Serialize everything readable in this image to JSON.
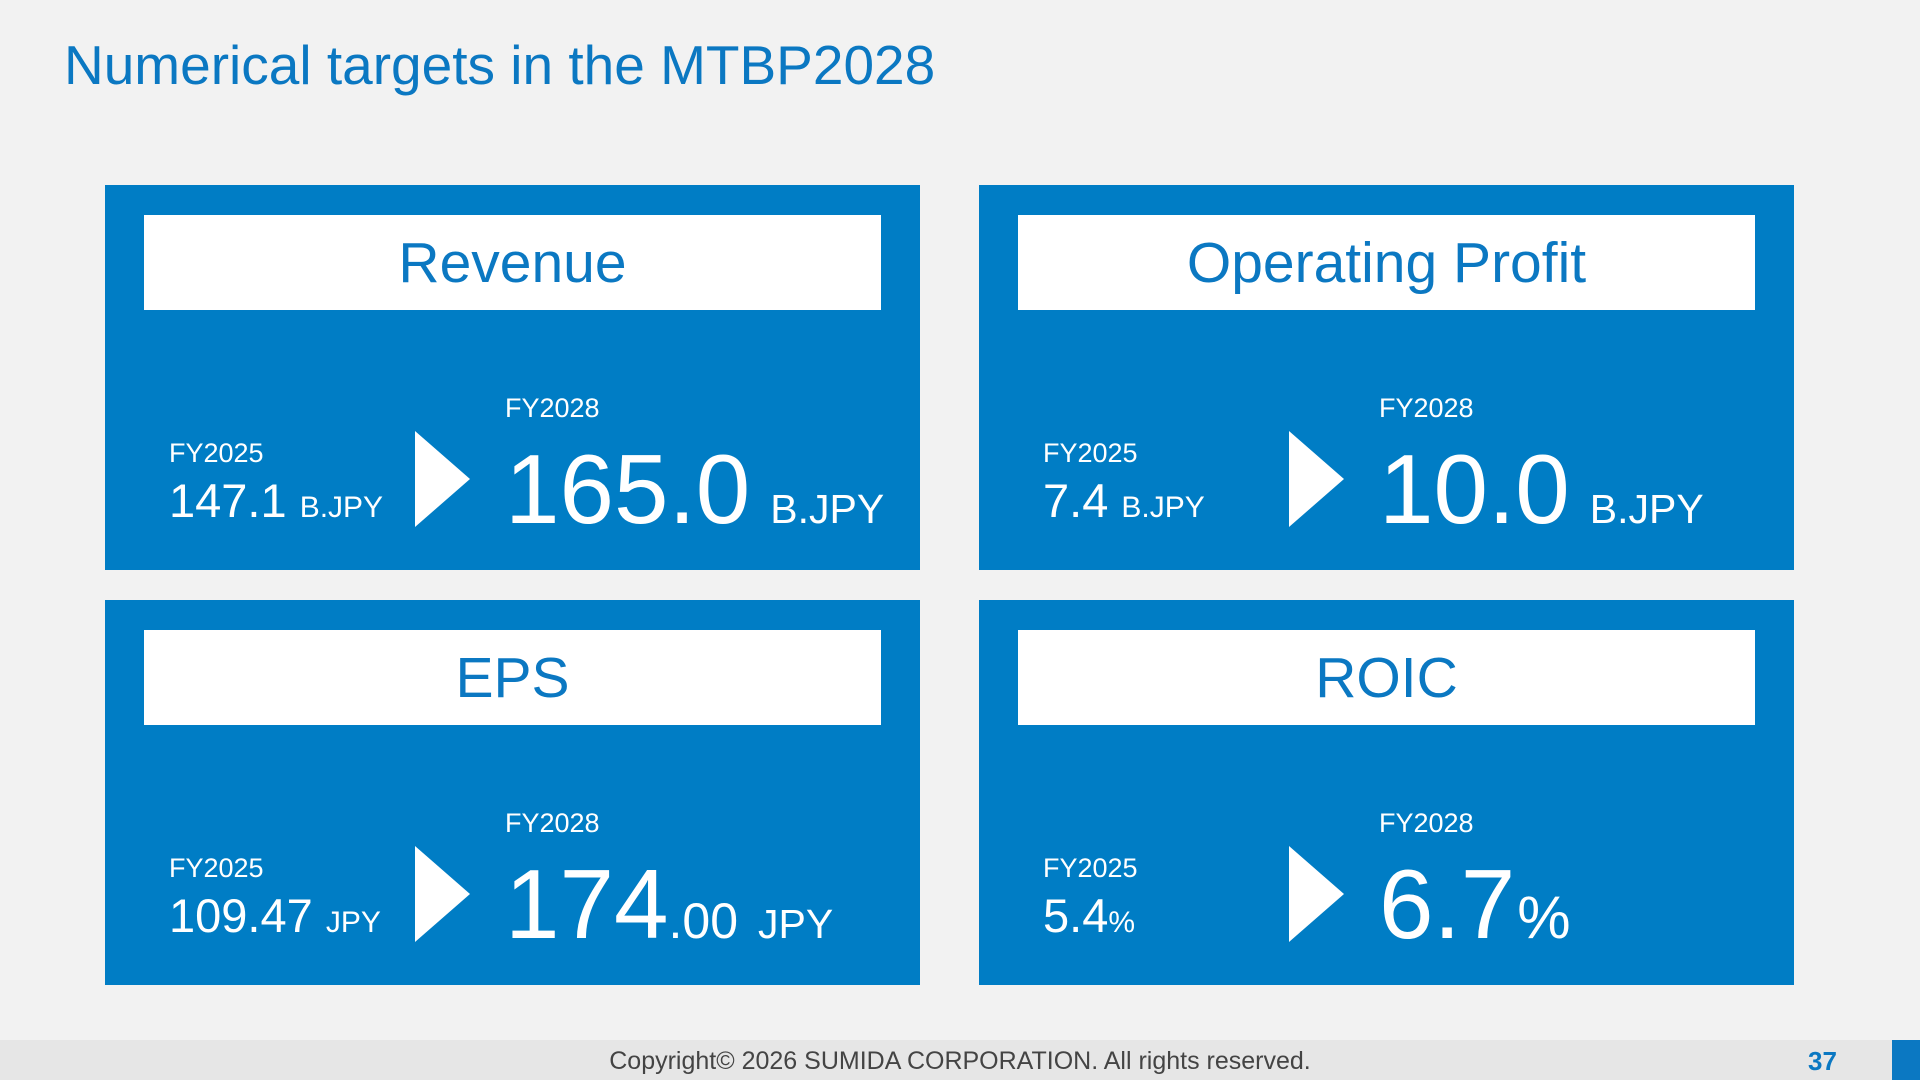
{
  "title": "Numerical targets in the MTBP2028",
  "cards": [
    {
      "heading": "Revenue",
      "from_label": "FY2025",
      "from_value": "147.1",
      "from_unit": "B.JPY",
      "to_label": "FY2028",
      "to_value": "165.0",
      "to_decimals": "",
      "to_unit": "B.JPY"
    },
    {
      "heading": "Operating Profit",
      "from_label": "FY2025",
      "from_value": "7.4",
      "from_unit": "B.JPY",
      "to_label": "FY2028",
      "to_value": "10.0",
      "to_decimals": "",
      "to_unit": "B.JPY"
    },
    {
      "heading": "EPS",
      "from_label": "FY2025",
      "from_value": "109.47",
      "from_unit": "JPY",
      "to_label": "FY2028",
      "to_value": "174",
      "to_decimals": ".00",
      "to_unit": "JPY"
    },
    {
      "heading": "ROIC",
      "from_label": "FY2025",
      "from_value": "5.4",
      "from_unit": "%",
      "to_label": "FY2028",
      "to_value": "6.7",
      "to_decimals": "",
      "to_unit": "%"
    }
  ],
  "footer": {
    "copyright": "Copyright© 2026 SUMIDA CORPORATION. All rights reserved.",
    "page_number": "37"
  },
  "colors": {
    "brand_blue": "#007dc5",
    "title_blue": "#0b78c2",
    "background": "#f2f2f2"
  },
  "icons": {
    "card_arrow": "triangle-right-icon"
  }
}
